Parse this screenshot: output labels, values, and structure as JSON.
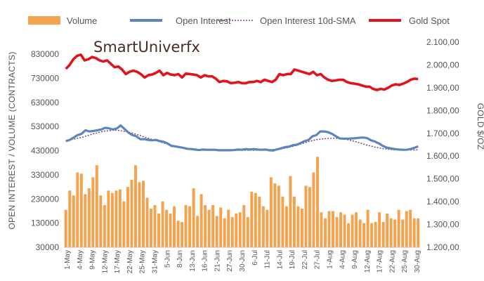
{
  "chart_data": {
    "type": "bar",
    "watermark": "SmartUniverfx",
    "legend": [
      {
        "name": "Volume",
        "color": "#f4a24d",
        "style": "bar"
      },
      {
        "name": "Open Interest",
        "color": "#5b85be",
        "style": "line"
      },
      {
        "name": "Open Interest 10d-SMA",
        "color": "#7a3f80",
        "style": "dotted"
      },
      {
        "name": "Gold Spot",
        "color": "#e0141a",
        "style": "line"
      }
    ],
    "ylabel_left": "OPEN INTEREST / VOLUME (CONTRACTS)",
    "ylabel_right": "GOLD $/OZ",
    "ylim_left": [
      30000,
      880000
    ],
    "ylim_right": [
      1200,
      2100
    ],
    "yticks_left": [
      "830000",
      "730000",
      "630000",
      "530000",
      "430000",
      "330000",
      "230000",
      "130000",
      "30000"
    ],
    "yticks_right": [
      "2.100,00",
      "2.000,00",
      "1.900,00",
      "1.800,00",
      "1.700,00",
      "1.600,00",
      "1.500,00",
      "1.400,00",
      "1.300,00",
      "1.200,00"
    ],
    "x_tick_labels": [
      "1-May",
      "4-May",
      "9-May",
      "12-May",
      "17-May",
      "22-May",
      "25-May",
      "31-May",
      "5-Jun",
      "8-Jun",
      "13-Jun",
      "16-Jun",
      "21-Jun",
      "27-Jun",
      "30-Jun",
      "6-Jul",
      "11-Jul",
      "14-Jul",
      "19-Jul",
      "22-Jul",
      "27-Jul",
      "1-Aug",
      "4-Aug",
      "9-Aug",
      "12-Aug",
      "17-Aug",
      "22-Aug",
      "25-Aug",
      "30-Aug"
    ],
    "series": [
      {
        "name": "Volume",
        "values": [
          185000,
          265000,
          245000,
          340000,
          335000,
          250000,
          275000,
          320000,
          370000,
          245000,
          205000,
          265000,
          255000,
          265000,
          270000,
          220000,
          280000,
          310000,
          370000,
          300000,
          305000,
          235000,
          190000,
          205000,
          170000,
          220000,
          185000,
          170000,
          200000,
          140000,
          135000,
          205000,
          200000,
          275000,
          160000,
          250000,
          205000,
          185000,
          205000,
          160000,
          195000,
          150000,
          185000,
          155000,
          170000,
          175000,
          205000,
          155000,
          260000,
          255000,
          240000,
          200000,
          185000,
          320000,
          295000,
          285000,
          240000,
          200000,
          325000,
          240000,
          200000,
          190000,
          285000,
          280000,
          340000,
          405000,
          175000,
          150000,
          180000,
          180000,
          155000,
          175000,
          165000,
          130000,
          165000,
          175000,
          145000,
          130000,
          185000,
          130000,
          135000,
          175000,
          135000,
          170000,
          150000,
          145000,
          185000,
          145000,
          180000,
          185000,
          150000,
          150000
        ]
      },
      {
        "name": "Open Interest",
        "values": [
          470000,
          475000,
          485000,
          495000,
          500000,
          515000,
          510000,
          512000,
          515000,
          518000,
          525000,
          523000,
          518000,
          522000,
          535000,
          520000,
          505000,
          495000,
          490000,
          478000,
          478000,
          475000,
          473000,
          475000,
          470000,
          467000,
          460000,
          450000,
          448000,
          445000,
          442000,
          438000,
          437000,
          435000,
          433000,
          435000,
          434000,
          434000,
          434000,
          432000,
          432000,
          432000,
          432000,
          433000,
          435000,
          434000,
          437000,
          435000,
          437000,
          435000,
          434000,
          435000,
          432000,
          431000,
          436000,
          440000,
          445000,
          447000,
          453000,
          455000,
          462000,
          470000,
          475000,
          490000,
          495000,
          510000,
          510000,
          507000,
          500000,
          490000,
          481000,
          480000,
          480000,
          481000,
          482000,
          484000,
          485000,
          482000,
          473000,
          468000,
          460000,
          450000,
          443000,
          440000,
          437000,
          435000,
          434000,
          434000,
          437000,
          442000,
          448000
        ]
      },
      {
        "name": "Open Interest 10d-SMA",
        "values": [
          470000,
          475000,
          478000,
          482000,
          485000,
          490000,
          495000,
          500000,
          504000,
          508000,
          512000,
          513000,
          515000,
          515000,
          513000,
          510000,
          507000,
          503000,
          498000,
          493000,
          487000,
          482000,
          477000,
          472000,
          467000,
          462000,
          458000,
          453000,
          449000,
          445000,
          441000,
          438000,
          436000,
          434000,
          433000,
          432000,
          432000,
          432000,
          432000,
          432000,
          432000,
          432000,
          432000,
          432000,
          432000,
          432000,
          432000,
          432000,
          432000,
          432000,
          432000,
          433000,
          434000,
          435000,
          436000,
          438000,
          441000,
          444000,
          448000,
          453000,
          458000,
          463000,
          468000,
          472000,
          476000,
          478000,
          480000,
          481000,
          482000,
          482000,
          481000,
          479000,
          476000,
          472000,
          468000,
          463000,
          458000,
          453000,
          449000,
          445000,
          442000,
          439000,
          437000,
          435000,
          434000,
          433000,
          433000,
          433000,
          433000,
          433000,
          434000
        ]
      },
      {
        "name": "Gold Spot",
        "values": [
          1983,
          2000,
          2025,
          2040,
          2045,
          2020,
          2025,
          2035,
          2030,
          2020,
          2015,
          2020,
          2005,
          1990,
          1993,
          1980,
          1960,
          1970,
          1975,
          1970,
          1960,
          1945,
          1955,
          1958,
          1965,
          1975,
          1955,
          1965,
          1958,
          1955,
          1960,
          1945,
          1962,
          1960,
          1958,
          1955,
          1945,
          1955,
          1950,
          1950,
          1940,
          1925,
          1930,
          1928,
          1920,
          1922,
          1925,
          1920,
          1920,
          1925,
          1925,
          1930,
          1925,
          1935,
          1930,
          1925,
          1935,
          1960,
          1955,
          1960,
          1960,
          1980,
          1975,
          1970,
          1965,
          1960,
          1970,
          1955,
          1960,
          1945,
          1935,
          1930,
          1932,
          1935,
          1935,
          1925,
          1920,
          1918,
          1915,
          1910,
          1905,
          1905,
          1895,
          1890,
          1895,
          1892,
          1900,
          1910,
          1915,
          1912,
          1918,
          1925,
          1935,
          1940,
          1938
        ]
      }
    ]
  }
}
